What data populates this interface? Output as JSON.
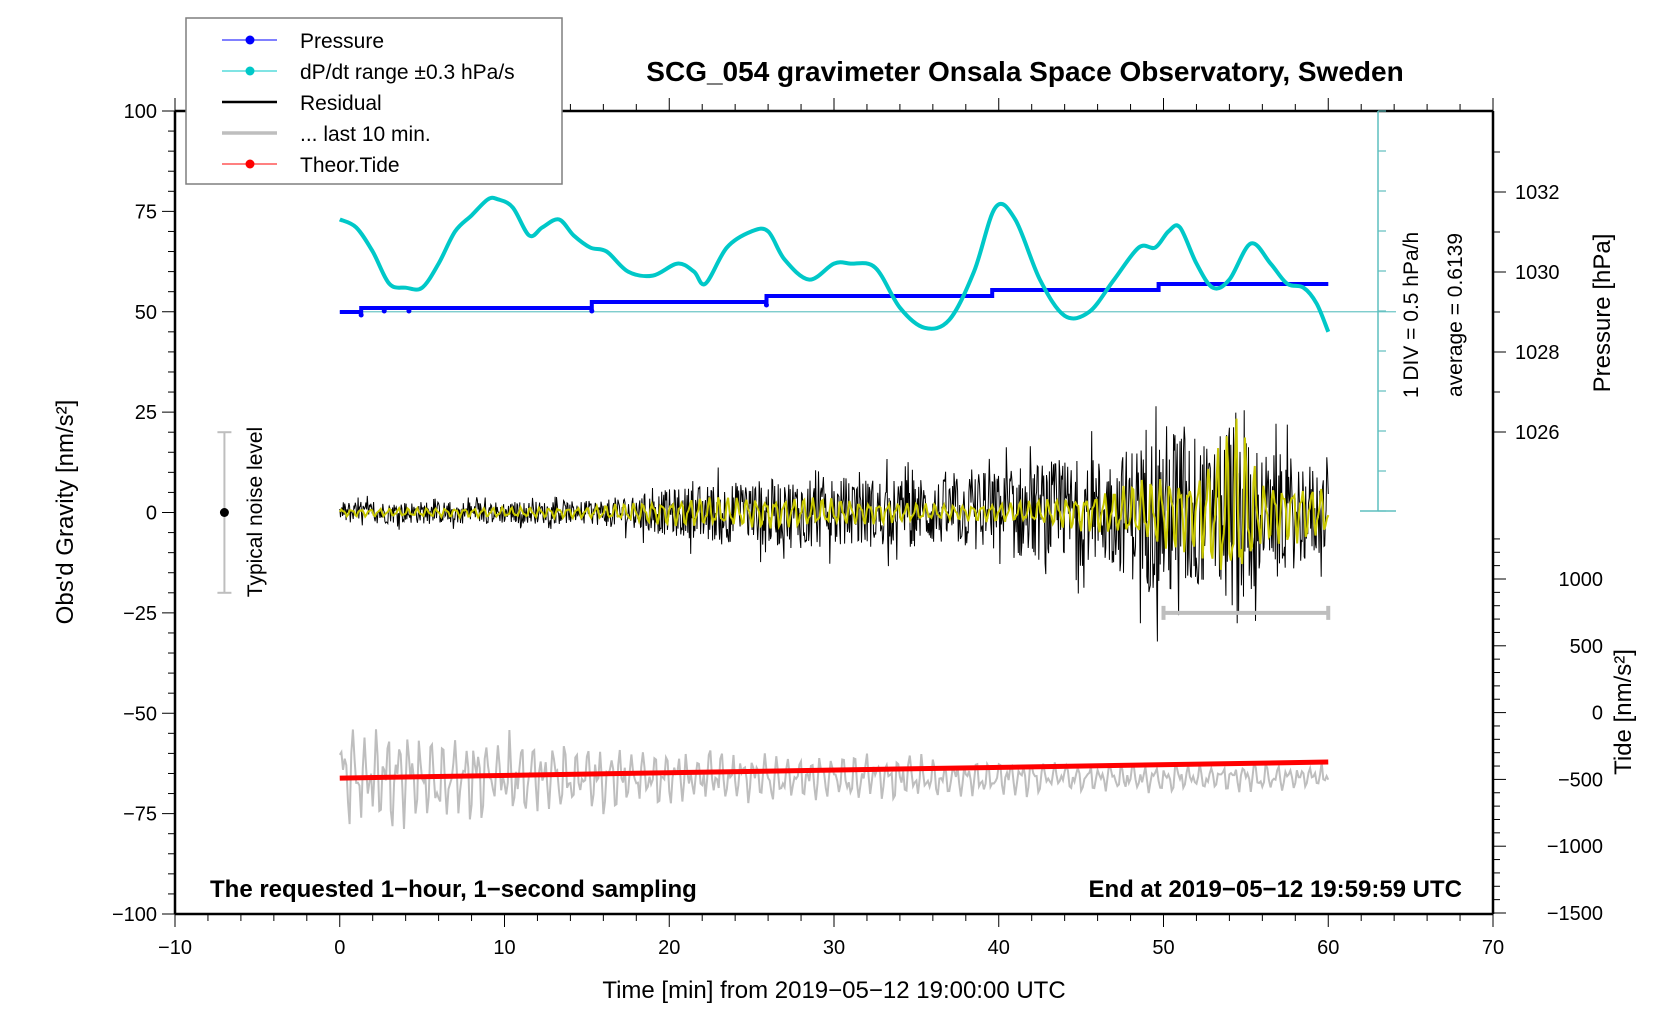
{
  "chart_data": {
    "type": "line",
    "title": "SCG_054 gravimeter Onsala Space Observatory, Sweden",
    "xlabel": "Time [min] from 2019−05−12 19:00:00 UTC",
    "ylabel_left": "Obs'd Gravity [nm/s²]",
    "ylabel_right_pressure": "Pressure [hPa]",
    "ylabel_right_tide": "Tide [nm/s²]",
    "xlim": [
      -10,
      70
    ],
    "ylim_left": [
      -100,
      100
    ],
    "x_ticks": [
      -10,
      0,
      10,
      20,
      30,
      40,
      50,
      60,
      70
    ],
    "x_tick_labels": [
      "−10",
      "0",
      "10",
      "20",
      "30",
      "40",
      "50",
      "60",
      "70"
    ],
    "y_left_ticks": [
      100,
      75,
      50,
      25,
      0,
      -25,
      -50,
      -75,
      -100
    ],
    "y_left_tick_labels": [
      "100",
      "75",
      "50",
      "25",
      "0",
      "−25",
      "−50",
      "−75",
      "−100"
    ],
    "pressure_ticks": [
      1032,
      1030,
      1028,
      1026
    ],
    "pressure_tick_labels": [
      "1032",
      "1030",
      "1028",
      "1026"
    ],
    "tide_ticks": [
      1000,
      500,
      0,
      -500,
      -1000,
      -1500
    ],
    "tide_tick_labels": [
      "1000",
      "500",
      "0",
      "−500",
      "−1000",
      "−1500"
    ],
    "grid": false,
    "legend_position": "top-left",
    "legend": [
      {
        "label": "Pressure",
        "color": "#0000ff",
        "marker": "dot"
      },
      {
        "label": "dP/dt range ±0.3 hPa/s",
        "color": "#00c8c8",
        "marker": "dot"
      },
      {
        "label": "Residual",
        "color": "#000000",
        "marker": "line"
      },
      {
        "label": "... last 10 min.",
        "color": "#bebebe",
        "marker": "line"
      },
      {
        "label": "Theor.Tide",
        "color": "#ff0000",
        "marker": "dot"
      }
    ],
    "annotations": {
      "bottom_left": "The requested 1−hour, 1−second sampling",
      "bottom_right": "End at 2019−05−12 19:59:59 UTC",
      "scale_div": "1 DIV = 0.5 hPa/h",
      "scale_average": "average = 0.6139",
      "noise_label": "Typical noise level"
    },
    "noise_level": {
      "center": 0,
      "range": [
        -20,
        20
      ],
      "x": -7
    },
    "last10_bar": {
      "x_range": [
        50,
        60
      ],
      "y": -25
    },
    "series": [
      {
        "name": "Pressure",
        "axis": "pressure",
        "color": "#0000ff",
        "x": [
          0,
          1.3,
          1.3,
          15.3,
          15.3,
          25.9,
          25.9,
          39.6,
          39.6,
          49.7,
          49.7,
          60
        ],
        "values": [
          1029.0,
          1029.0,
          1029.1,
          1029.1,
          1029.25,
          1029.25,
          1029.4,
          1029.4,
          1029.55,
          1029.55,
          1029.7,
          1029.7
        ]
      },
      {
        "name": "dP/dt",
        "axis": "left",
        "color": "#00c8c8",
        "x": [
          0,
          1,
          2,
          3,
          4,
          5,
          6,
          7,
          8,
          9,
          9.6,
          10.5,
          11.5,
          12.3,
          13.3,
          14.2,
          15.2,
          16.2,
          17.5,
          19,
          20.5,
          21.5,
          22.2,
          23.5,
          25,
          26,
          27,
          28.5,
          30,
          31,
          32.5,
          34,
          35.5,
          37,
          38.5,
          39.8,
          41,
          42.5,
          44,
          45.5,
          47,
          48.5,
          49.5,
          50.3,
          51,
          52,
          53,
          54,
          55.3,
          56.5,
          57.5,
          58.5,
          59.3,
          60
        ],
        "values": [
          73,
          71,
          65,
          57,
          56,
          56,
          62,
          70,
          74,
          78,
          78,
          76,
          69,
          71,
          73,
          69,
          66,
          65,
          60,
          59,
          62,
          60,
          57,
          66,
          70,
          70,
          63,
          58,
          62,
          62,
          61,
          51,
          46,
          48,
          60,
          76,
          73,
          58,
          49,
          50,
          58,
          66,
          66,
          70,
          71,
          62,
          56,
          58,
          67,
          62,
          57,
          56,
          52,
          45
        ]
      },
      {
        "name": "Residual",
        "axis": "left",
        "color": "#000000",
        "x_range": [
          0,
          60
        ],
        "envelope": {
          "x": [
            0,
            10,
            15,
            22,
            28,
            37,
            42,
            47,
            49,
            51,
            53,
            54.5,
            56,
            58,
            60
          ],
          "amp": [
            4,
            4,
            4,
            10,
            13,
            12,
            18,
            20,
            28,
            35,
            22,
            40,
            22,
            20,
            15
          ]
        }
      },
      {
        "name": "Residual smoothed",
        "axis": "left",
        "color": "#c8c800",
        "x_range": [
          0,
          60
        ],
        "envelope": {
          "x": [
            0,
            15,
            22,
            28,
            37,
            42,
            47,
            50,
            52,
            54.5,
            56,
            58,
            60
          ],
          "amp": [
            1,
            1.5,
            4,
            4,
            2,
            3,
            6,
            10,
            10,
            25,
            8,
            8,
            6
          ]
        }
      },
      {
        "name": "... last 10 min.",
        "axis": "left",
        "color": "#bebebe",
        "x_range": [
          0,
          60
        ],
        "baseline": -66,
        "envelope": {
          "x": [
            0,
            10,
            20,
            30,
            40,
            50,
            60
          ],
          "amp": [
            11,
            9,
            6,
            5,
            4,
            3,
            3
          ]
        }
      },
      {
        "name": "Theor.Tide",
        "axis": "tide",
        "color": "#ff0000",
        "x": [
          0,
          60
        ],
        "values": [
          -490,
          -370
        ]
      }
    ]
  }
}
